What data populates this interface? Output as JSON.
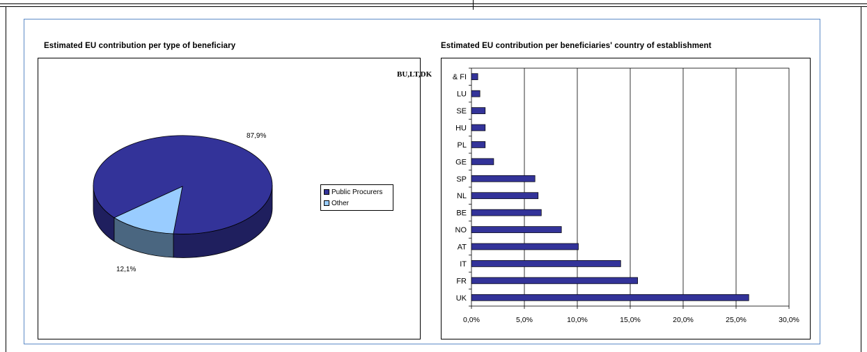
{
  "charts": {
    "pie": {
      "title": "Estimated EU contribution per type of beneficiary",
      "labels": {
        "public": "87,9%",
        "other": "12,1%"
      }
    },
    "bar": {
      "title": "Estimated EU contribution per beneficiaries' country of establishment",
      "first_label_overlap": "BU,LT,DK"
    }
  },
  "legend": {
    "items": [
      {
        "label": "Public Procurers",
        "color": "#333399"
      },
      {
        "label": "Other",
        "color": "#99ccff"
      }
    ]
  },
  "chart_data": [
    {
      "type": "pie",
      "title": "Estimated EU contribution per type of beneficiary",
      "categories": [
        "Public Procurers",
        "Other"
      ],
      "values": [
        87.9,
        12.1
      ],
      "value_labels": [
        "87,9%",
        "12,1%"
      ],
      "colors": [
        "#333399",
        "#99ccff"
      ],
      "legend": "right",
      "style": "3d"
    },
    {
      "type": "bar",
      "orientation": "horizontal",
      "title": "Estimated EU contribution per beneficiaries' country of establishment",
      "categories": [
        "& FI",
        "LU",
        "SE",
        "HU",
        "PL",
        "GE",
        "SP",
        "NL",
        "BE",
        "NO",
        "AT",
        "IT",
        "FR",
        "UK"
      ],
      "values": [
        0.6,
        0.8,
        1.3,
        1.3,
        1.3,
        2.1,
        6.0,
        6.3,
        6.6,
        8.5,
        10.1,
        14.1,
        15.7,
        26.2
      ],
      "xlim": [
        0,
        30
      ],
      "xticks": [
        "0,0%",
        "5,0%",
        "10,0%",
        "15,0%",
        "20,0%",
        "25,0%",
        "30,0%"
      ],
      "grid": true,
      "bar_color": "#333399"
    }
  ]
}
